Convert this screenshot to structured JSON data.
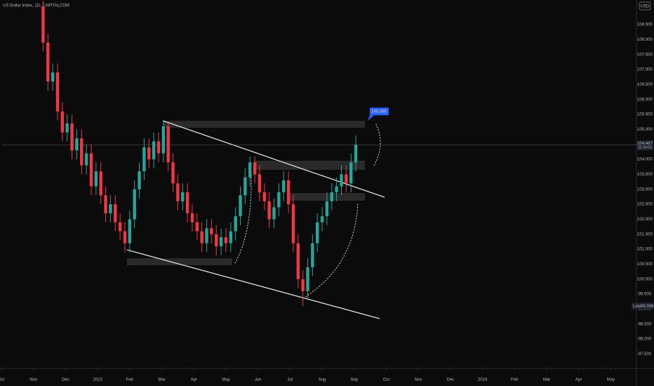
{
  "chart_data": {
    "type": "candlestick",
    "title": "US Dollar Index, 1D, CAPITALCOM",
    "currency": "USD",
    "up_color": "#26a69a",
    "down_color": "#f23645",
    "x": [
      1.3,
      1.45,
      1.6,
      1.75,
      1.9,
      2.05,
      2.2,
      2.35,
      2.5,
      2.65,
      2.8,
      2.95,
      3.1,
      3.25,
      3.4,
      3.55,
      3.7,
      3.85,
      4,
      4.15,
      4.3,
      4.45,
      4.6,
      4.75,
      4.9,
      5.05,
      5.2,
      5.35,
      5.5,
      5.65,
      5.8,
      5.95,
      6.1,
      6.25,
      6.4,
      6.55,
      6.7,
      6.85,
      7,
      7.15,
      7.3,
      7.45,
      7.6,
      7.75,
      7.9,
      8.05,
      8.2,
      8.35,
      8.5,
      8.65,
      8.8,
      8.95,
      9.1,
      9.25,
      9.4,
      9.55,
      9.7,
      9.85,
      10,
      10.15,
      10.3,
      10.45,
      10.6,
      10.75,
      10.9,
      11.05
    ],
    "open": [
      109.1,
      107.9,
      106.6,
      106.9,
      105.6,
      104.9,
      105.2,
      104.3,
      104.7,
      103.8,
      104.2,
      103.1,
      103.6,
      102.8,
      102.2,
      102.5,
      101.9,
      101.6,
      101.2,
      102.0,
      103.0,
      103.6,
      104.4,
      104.0,
      104.6,
      104.2,
      105.1,
      103.9,
      103.2,
      102.6,
      102.9,
      102.2,
      101.9,
      101.6,
      101.2,
      101.7,
      101.5,
      101.1,
      101.4,
      101.2,
      101.6,
      102.1,
      102.8,
      103.4,
      103.9,
      103.5,
      102.9,
      102.6,
      102.0,
      102.4,
      102.9,
      103.3,
      102.5,
      101.2,
      100.0,
      99.6,
      100.4,
      101.2,
      101.9,
      102.1,
      102.6,
      102.9,
      103.1,
      103.5,
      103.2,
      103.9
    ],
    "high": [
      109.3,
      108.2,
      107.2,
      107.2,
      105.9,
      105.5,
      105.5,
      105.0,
      105.0,
      104.5,
      104.5,
      103.9,
      103.9,
      103.1,
      102.8,
      102.8,
      102.2,
      101.9,
      102.3,
      103.3,
      103.9,
      104.7,
      104.7,
      104.9,
      104.9,
      105.3,
      105.2,
      104.2,
      103.5,
      103.2,
      103.2,
      102.5,
      102.2,
      101.9,
      102.0,
      102.0,
      101.8,
      101.7,
      101.7,
      101.9,
      102.4,
      103.1,
      103.7,
      104.1,
      104.1,
      103.8,
      103.2,
      102.9,
      102.7,
      103.2,
      103.6,
      103.6,
      102.8,
      101.5,
      100.3,
      100.7,
      101.5,
      102.2,
      102.4,
      102.9,
      103.2,
      103.4,
      103.8,
      103.8,
      104.2,
      104.8
    ],
    "low": [
      107.6,
      106.3,
      106.3,
      105.3,
      104.6,
      104.6,
      104.0,
      104.0,
      103.5,
      103.5,
      102.8,
      102.8,
      102.5,
      101.9,
      101.9,
      101.6,
      101.3,
      100.9,
      100.9,
      101.7,
      102.7,
      103.3,
      103.7,
      103.7,
      103.9,
      103.9,
      103.6,
      102.9,
      102.3,
      102.3,
      101.9,
      101.6,
      101.3,
      100.9,
      100.9,
      101.2,
      100.8,
      100.8,
      100.9,
      100.9,
      101.3,
      101.8,
      102.5,
      103.1,
      103.2,
      102.6,
      102.3,
      101.7,
      101.7,
      102.1,
      102.6,
      102.2,
      100.9,
      99.7,
      99.1,
      99.3,
      100.1,
      100.9,
      101.6,
      101.8,
      102.3,
      102.6,
      102.8,
      102.9,
      102.9,
      103.6
    ],
    "close": [
      107.9,
      106.6,
      106.9,
      105.6,
      104.9,
      105.2,
      104.3,
      104.7,
      103.8,
      104.2,
      103.1,
      103.6,
      102.8,
      102.2,
      102.5,
      101.9,
      101.6,
      101.2,
      102.0,
      103.0,
      103.6,
      104.4,
      104.0,
      104.6,
      104.2,
      105.1,
      103.9,
      103.2,
      102.6,
      102.9,
      102.2,
      101.9,
      101.6,
      101.2,
      101.7,
      101.5,
      101.1,
      101.4,
      101.2,
      101.6,
      102.1,
      102.8,
      103.4,
      103.9,
      103.5,
      102.9,
      102.6,
      102.0,
      102.4,
      102.9,
      103.3,
      102.5,
      101.2,
      100.0,
      99.6,
      100.4,
      101.2,
      101.9,
      102.1,
      102.6,
      102.9,
      103.1,
      103.5,
      103.2,
      103.9,
      104.49
    ],
    "xlim": [
      0,
      19.8
    ],
    "ylim": [
      97.02,
      109.32
    ],
    "xticks": [
      {
        "value": 0,
        "label": "Oct"
      },
      {
        "value": 1,
        "label": "Nov"
      },
      {
        "value": 2,
        "label": "Dec"
      },
      {
        "value": 3,
        "label": "2023"
      },
      {
        "value": 4,
        "label": "Feb"
      },
      {
        "value": 5,
        "label": "Mar"
      },
      {
        "value": 6,
        "label": "Apr"
      },
      {
        "value": 7,
        "label": "May"
      },
      {
        "value": 8,
        "label": "Jun"
      },
      {
        "value": 9,
        "label": "Jul"
      },
      {
        "value": 10,
        "label": "Aug"
      },
      {
        "value": 11,
        "label": "Sep"
      },
      {
        "value": 12,
        "label": "Oct"
      },
      {
        "value": 13,
        "label": "Nov"
      },
      {
        "value": 14,
        "label": "Dec"
      },
      {
        "value": 15,
        "label": "2024"
      },
      {
        "value": 16,
        "label": "Feb"
      },
      {
        "value": 17,
        "label": "Mar"
      },
      {
        "value": 18,
        "label": "Apr"
      },
      {
        "value": 19,
        "label": "May"
      }
    ],
    "yticks": [
      {
        "value": 97.5,
        "label": "97.500"
      },
      {
        "value": 98,
        "label": "98.000"
      },
      {
        "value": 98.5,
        "label": "98.500"
      },
      {
        "value": 99,
        "label": "99.000"
      },
      {
        "value": 99.5,
        "label": "99.500"
      },
      {
        "value": 100,
        "label": "100.000"
      },
      {
        "value": 100.5,
        "label": "100.500"
      },
      {
        "value": 101,
        "label": "101.000"
      },
      {
        "value": 101.5,
        "label": "101.500"
      },
      {
        "value": 102,
        "label": "102.000"
      },
      {
        "value": 102.5,
        "label": "102.500"
      },
      {
        "value": 103,
        "label": "103.000"
      },
      {
        "value": 103.5,
        "label": "103.500"
      },
      {
        "value": 104,
        "label": "104.000"
      },
      {
        "value": 104.5,
        "label": "104.500"
      },
      {
        "value": 105,
        "label": "105.000"
      },
      {
        "value": 105.5,
        "label": "105.500"
      },
      {
        "value": 106,
        "label": "106.000"
      },
      {
        "value": 106.5,
        "label": "106.500"
      },
      {
        "value": 107,
        "label": "107.000"
      },
      {
        "value": 107.5,
        "label": "107.500"
      },
      {
        "value": 108,
        "label": "108.000"
      },
      {
        "value": 108.5,
        "label": "108.500"
      }
    ],
    "last_price": 104.487,
    "countdown": "22:24:03",
    "low_marker": {
      "label": "Low",
      "value": 99.099
    },
    "target_label": 105.285
  }
}
